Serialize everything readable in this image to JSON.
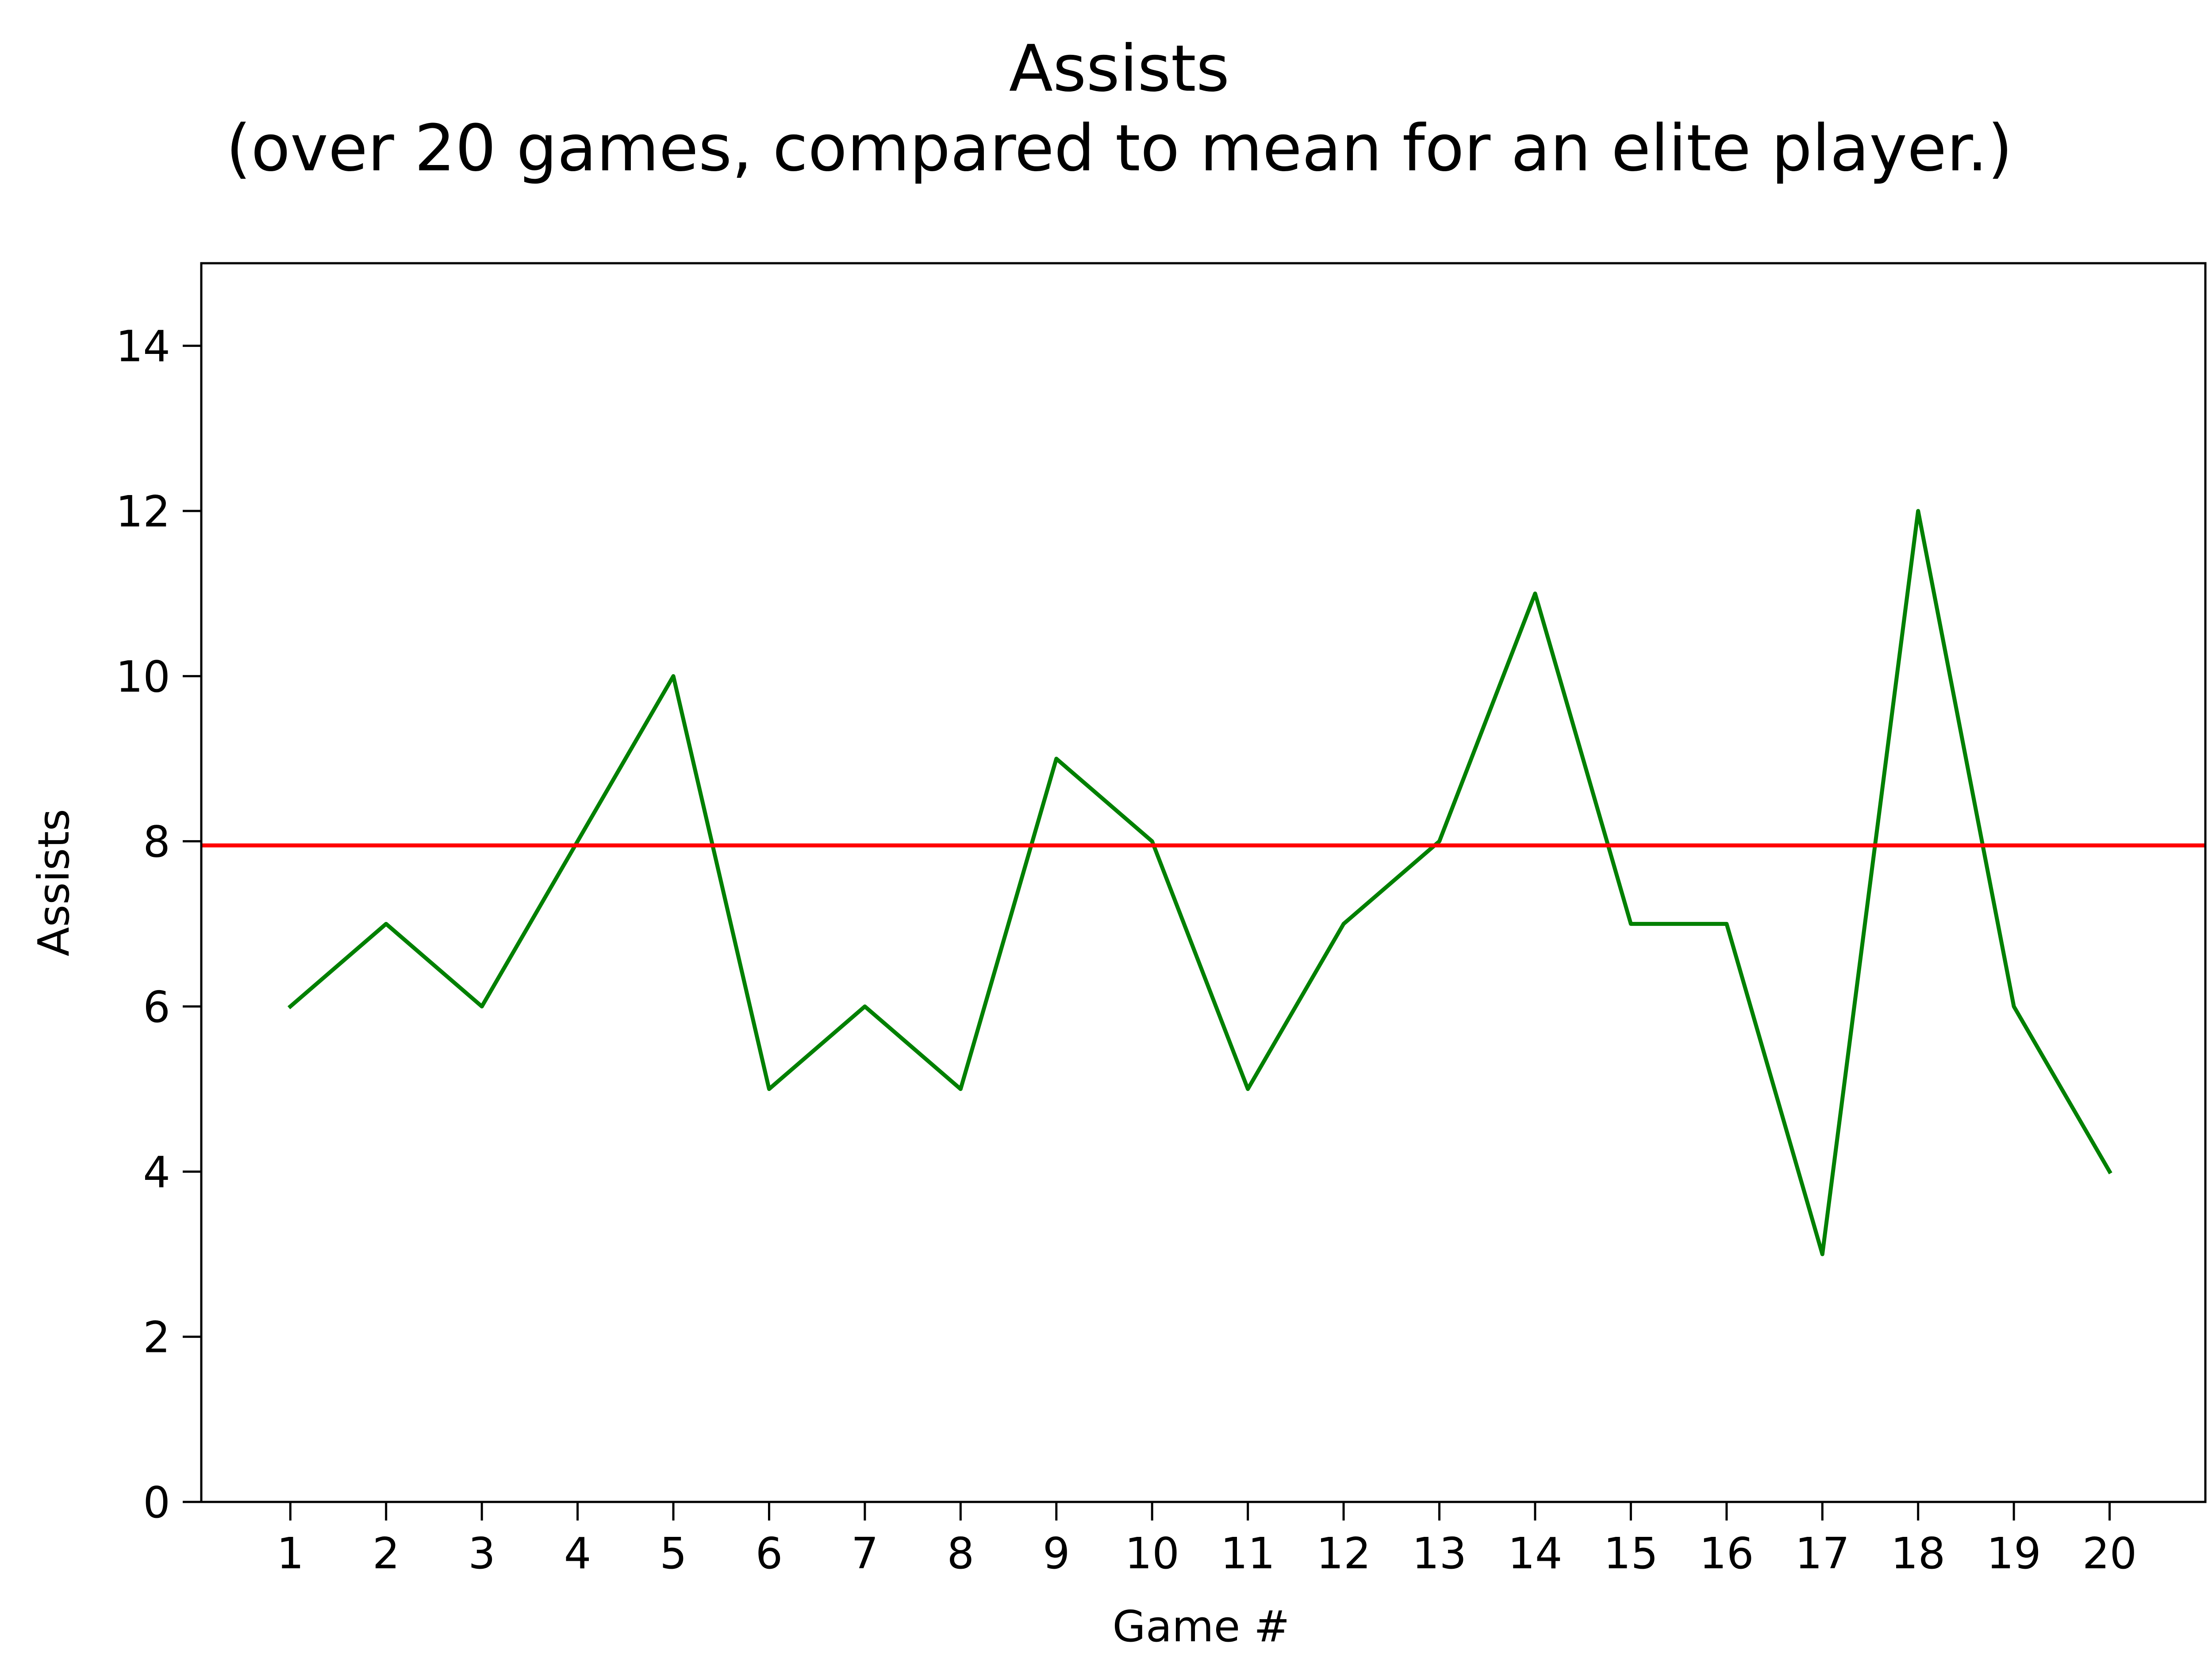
{
  "chart_data": {
    "type": "line",
    "title": "Assists",
    "subtitle": "(over 20 games, compared to mean for an elite player.)",
    "xlabel": "Game #",
    "ylabel": "Assists",
    "x": [
      1,
      2,
      3,
      4,
      5,
      6,
      7,
      8,
      9,
      10,
      11,
      12,
      13,
      14,
      15,
      16,
      17,
      18,
      19,
      20
    ],
    "series": [
      {
        "values": [
          6,
          7,
          6,
          8,
          10,
          5,
          6,
          5,
          9,
          8,
          5,
          7,
          8,
          11,
          7,
          7,
          3,
          12,
          6,
          4
        ],
        "color": "#008000"
      }
    ],
    "reference_line": {
      "y": 7.95,
      "color": "#ff0000"
    },
    "xlim": [
      0.07,
      21
    ],
    "ylim": [
      0,
      15
    ],
    "xticks": [
      1,
      2,
      3,
      4,
      5,
      6,
      7,
      8,
      9,
      10,
      11,
      12,
      13,
      14,
      15,
      16,
      17,
      18,
      19,
      20
    ],
    "yticks": [
      0,
      2,
      4,
      6,
      8,
      10,
      12,
      14
    ],
    "grid": false,
    "legend": false
  }
}
